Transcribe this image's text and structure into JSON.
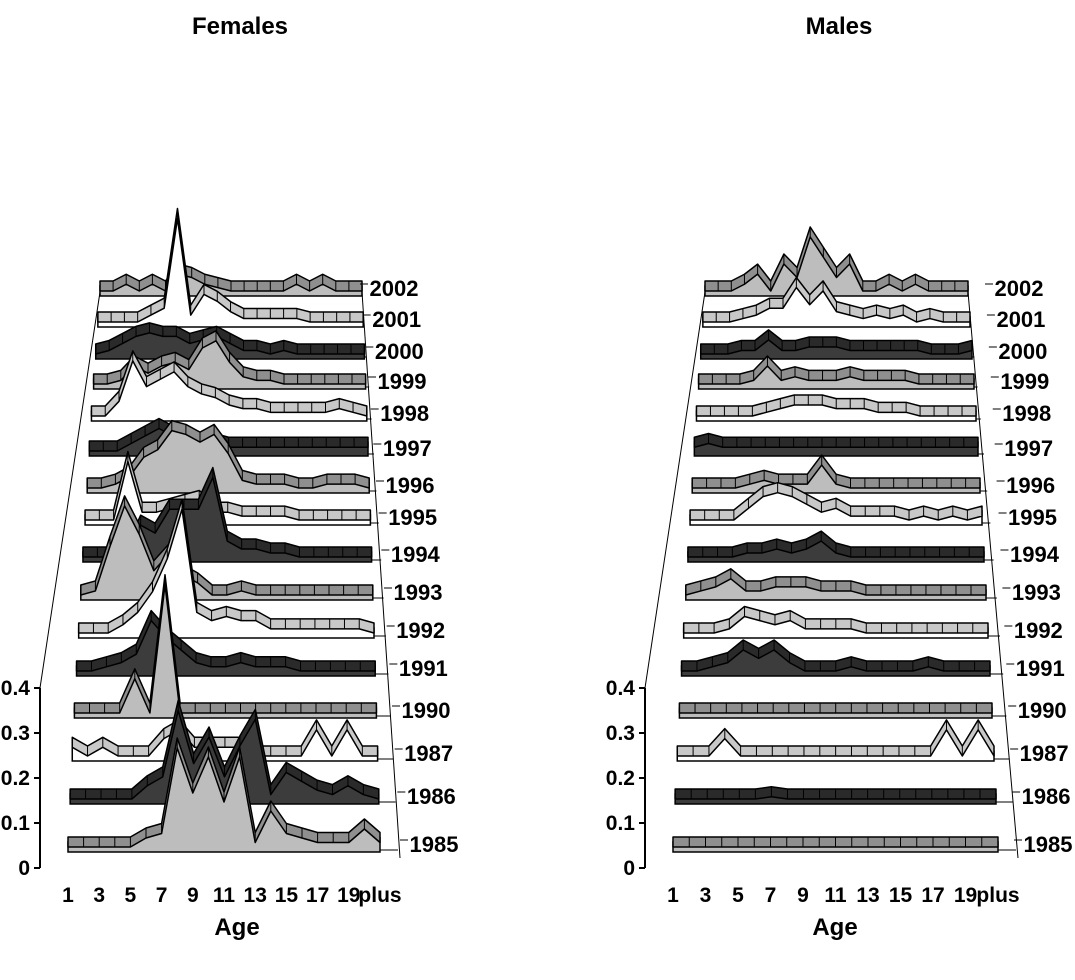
{
  "chart_data": [
    {
      "type": "area",
      "title": "Females",
      "xlabel": "Age",
      "ylabel": "",
      "ylim": [
        0,
        0.4
      ],
      "yticks": [
        "0",
        "0.1",
        "0.2",
        "0.3",
        "0.4"
      ],
      "categories": [
        "1",
        "2",
        "3",
        "4",
        "5",
        "6",
        "7",
        "8",
        "9",
        "10",
        "11",
        "12",
        "13",
        "14",
        "15",
        "16",
        "17",
        "18",
        "19",
        "20",
        "plus"
      ],
      "xtick_labels": [
        "1",
        "3",
        "5",
        "7",
        "9",
        "11",
        "13",
        "15",
        "17",
        "19",
        "plus"
      ],
      "series": [
        {
          "name": "1985",
          "fill": "#bdbdbd",
          "values": [
            0,
            0,
            0,
            0,
            0,
            0.02,
            0.03,
            0.22,
            0.12,
            0.2,
            0.1,
            0.2,
            0.01,
            0.08,
            0.03,
            0.02,
            0.01,
            0.01,
            0.01,
            0.04,
            0.01
          ]
        },
        {
          "name": "1986",
          "fill": "#3c3c3c",
          "values": [
            0,
            0,
            0,
            0,
            0,
            0.03,
            0.05,
            0.2,
            0.08,
            0.14,
            0.05,
            0.12,
            0.18,
            0.01,
            0.06,
            0.04,
            0.02,
            0.01,
            0.03,
            0.01,
            0
          ]
        },
        {
          "name": "1987",
          "fill": "#ffffff",
          "values": [
            0.02,
            0,
            0.02,
            0,
            0,
            0,
            0.04,
            0.06,
            0.02,
            0.02,
            0.02,
            0.02,
            0,
            0,
            0,
            0,
            0.06,
            0,
            0.06,
            0,
            0
          ]
        },
        {
          "name": "1990",
          "fill": "#bdbdbd",
          "values": [
            0,
            0,
            0,
            0,
            0.08,
            0,
            0.3,
            0,
            0,
            0,
            0,
            0,
            0,
            0,
            0,
            0,
            0,
            0,
            0,
            0,
            0
          ]
        },
        {
          "name": "1991",
          "fill": "#3c3c3c",
          "values": [
            0,
            0,
            0.01,
            0.02,
            0.04,
            0.12,
            0.08,
            0.05,
            0.02,
            0.01,
            0.01,
            0.02,
            0.01,
            0.01,
            0.01,
            0,
            0,
            0,
            0,
            0,
            0
          ]
        },
        {
          "name": "1992",
          "fill": "#ffffff",
          "values": [
            0,
            0,
            0,
            0.02,
            0.05,
            0.1,
            0.18,
            0.3,
            0.05,
            0.03,
            0.04,
            0.03,
            0.03,
            0.01,
            0.01,
            0.01,
            0.01,
            0.01,
            0.01,
            0.01,
            0
          ]
        },
        {
          "name": "1993",
          "fill": "#bdbdbd",
          "values": [
            0,
            0.01,
            0.12,
            0.22,
            0.15,
            0.06,
            0.1,
            0.05,
            0.03,
            0,
            0,
            0.01,
            0,
            0,
            0,
            0,
            0,
            0,
            0,
            0,
            0
          ]
        },
        {
          "name": "1994",
          "fill": "#3c3c3c",
          "values": [
            0,
            0,
            0,
            0,
            0.08,
            0.06,
            0.12,
            0.12,
            0.12,
            0.2,
            0.04,
            0.02,
            0.02,
            0.01,
            0.01,
            0,
            0,
            0,
            0,
            0,
            0
          ]
        },
        {
          "name": "1995",
          "fill": "#ffffff",
          "values": [
            0,
            0,
            0,
            0.15,
            0.02,
            0.02,
            0.03,
            0.04,
            0.05,
            0.02,
            0.02,
            0.01,
            0.01,
            0.01,
            0.01,
            0,
            0,
            0,
            0,
            0,
            0
          ]
        },
        {
          "name": "1996",
          "fill": "#bdbdbd",
          "values": [
            0,
            0,
            0.01,
            0.03,
            0.08,
            0.1,
            0.15,
            0.14,
            0.12,
            0.14,
            0.09,
            0.02,
            0.01,
            0.01,
            0.01,
            0,
            0,
            0.01,
            0.01,
            0.01,
            0
          ]
        },
        {
          "name": "1997",
          "fill": "#3c3c3c",
          "values": [
            0,
            0,
            0,
            0.02,
            0.04,
            0.06,
            0.04,
            0.03,
            0.02,
            0.02,
            0.01,
            0.01,
            0.01,
            0.01,
            0.01,
            0.01,
            0.01,
            0.01,
            0.01,
            0.01,
            0.01
          ]
        },
        {
          "name": "1998",
          "fill": "#ffffff",
          "values": [
            0,
            0,
            0.04,
            0.15,
            0.08,
            0.1,
            0.12,
            0.08,
            0.06,
            0.05,
            0.03,
            0.02,
            0.02,
            0.01,
            0.01,
            0.01,
            0.01,
            0.01,
            0.02,
            0.01,
            0
          ]
        },
        {
          "name": "1999",
          "fill": "#bdbdbd",
          "values": [
            0,
            0,
            0.01,
            0.05,
            0.03,
            0.05,
            0.06,
            0.04,
            0.1,
            0.12,
            0.06,
            0.02,
            0.01,
            0.01,
            0,
            0,
            0,
            0,
            0,
            0,
            0
          ]
        },
        {
          "name": "2000",
          "fill": "#3c3c3c",
          "values": [
            0,
            0.01,
            0.03,
            0.05,
            0.06,
            0.05,
            0.05,
            0.03,
            0.04,
            0.05,
            0.03,
            0.01,
            0.01,
            0,
            0.01,
            0,
            0,
            0,
            0,
            0,
            0
          ]
        },
        {
          "name": "2001",
          "fill": "#ffffff",
          "values": [
            0,
            0,
            0,
            0,
            0.02,
            0.04,
            0.3,
            0.02,
            0.08,
            0.06,
            0.03,
            0.01,
            0.01,
            0.01,
            0.01,
            0.01,
            0,
            0,
            0,
            0,
            0
          ]
        },
        {
          "name": "2002",
          "fill": "#bdbdbd",
          "values": [
            0,
            0,
            0.02,
            0,
            0.02,
            0,
            0.05,
            0.04,
            0.02,
            0.01,
            0,
            0,
            0,
            0,
            0,
            0.02,
            0,
            0.02,
            0,
            0,
            0
          ]
        }
      ]
    },
    {
      "type": "area",
      "title": "Males",
      "xlabel": "Age",
      "ylabel": "",
      "ylim": [
        0,
        0.4
      ],
      "yticks": [
        "0",
        "0.1",
        "0.2",
        "0.3",
        "0.4"
      ],
      "categories": [
        "1",
        "2",
        "3",
        "4",
        "5",
        "6",
        "7",
        "8",
        "9",
        "10",
        "11",
        "12",
        "13",
        "14",
        "15",
        "16",
        "17",
        "18",
        "19",
        "20",
        "plus"
      ],
      "xtick_labels": [
        "1",
        "3",
        "5",
        "7",
        "9",
        "11",
        "13",
        "15",
        "17",
        "19",
        "plus"
      ],
      "series": [
        {
          "name": "1985",
          "fill": "#bdbdbd",
          "values": [
            0,
            0,
            0,
            0,
            0,
            0,
            0,
            0,
            0,
            0,
            0,
            0,
            0,
            0,
            0,
            0,
            0,
            0,
            0,
            0,
            0
          ]
        },
        {
          "name": "1986",
          "fill": "#3c3c3c",
          "values": [
            0,
            0,
            0,
            0,
            0,
            0,
            0.005,
            0,
            0,
            0,
            0,
            0,
            0,
            0,
            0,
            0,
            0,
            0,
            0,
            0,
            0
          ]
        },
        {
          "name": "1987",
          "fill": "#ffffff",
          "values": [
            0,
            0,
            0,
            0.04,
            0,
            0,
            0,
            0,
            0,
            0,
            0,
            0,
            0,
            0,
            0,
            0,
            0,
            0.06,
            0,
            0.06,
            0
          ]
        },
        {
          "name": "1990",
          "fill": "#bdbdbd",
          "values": [
            0,
            0,
            0,
            0,
            0,
            0,
            0,
            0,
            0,
            0,
            0,
            0,
            0,
            0,
            0,
            0,
            0,
            0,
            0,
            0,
            0
          ]
        },
        {
          "name": "1991",
          "fill": "#3c3c3c",
          "values": [
            0,
            0,
            0.01,
            0.02,
            0.05,
            0.03,
            0.05,
            0.02,
            0,
            0,
            0,
            0.01,
            0,
            0,
            0,
            0,
            0.01,
            0,
            0,
            0,
            0
          ]
        },
        {
          "name": "1992",
          "fill": "#ffffff",
          "values": [
            0,
            0,
            0,
            0.01,
            0.04,
            0.03,
            0.02,
            0.03,
            0.01,
            0.01,
            0.01,
            0.01,
            0,
            0,
            0,
            0,
            0,
            0,
            0,
            0,
            0
          ]
        },
        {
          "name": "1993",
          "fill": "#bdbdbd",
          "values": [
            0,
            0.01,
            0.02,
            0.04,
            0.01,
            0.01,
            0.02,
            0.02,
            0.02,
            0.01,
            0.01,
            0.01,
            0,
            0,
            0,
            0,
            0,
            0,
            0,
            0,
            0
          ]
        },
        {
          "name": "1994",
          "fill": "#3c3c3c",
          "values": [
            0,
            0,
            0,
            0,
            0.01,
            0.01,
            0.02,
            0.01,
            0.02,
            0.04,
            0.01,
            0,
            0,
            0,
            0,
            0,
            0,
            0,
            0,
            0,
            0
          ]
        },
        {
          "name": "1995",
          "fill": "#ffffff",
          "values": [
            0,
            0,
            0,
            0,
            0.03,
            0.06,
            0.07,
            0.06,
            0.04,
            0.02,
            0.03,
            0.01,
            0.01,
            0.01,
            0.01,
            0,
            0.01,
            0,
            0.01,
            0,
            0.01
          ]
        },
        {
          "name": "1996",
          "fill": "#bdbdbd",
          "values": [
            0,
            0,
            0,
            0,
            0.01,
            0.02,
            0.01,
            0.01,
            0.01,
            0.06,
            0.01,
            0,
            0,
            0,
            0,
            0,
            0,
            0,
            0,
            0,
            0
          ]
        },
        {
          "name": "1997",
          "fill": "#3c3c3c",
          "values": [
            0.01,
            0.02,
            0.01,
            0.01,
            0.01,
            0.01,
            0.01,
            0.01,
            0.01,
            0.01,
            0.01,
            0.01,
            0.01,
            0.01,
            0.01,
            0.01,
            0.01,
            0.01,
            0.01,
            0.01,
            0.01
          ]
        },
        {
          "name": "1998",
          "fill": "#ffffff",
          "values": [
            0,
            0,
            0,
            0,
            0,
            0.01,
            0.02,
            0.03,
            0.03,
            0.03,
            0.02,
            0.02,
            0.02,
            0.01,
            0.01,
            0.01,
            0,
            0,
            0,
            0,
            0
          ]
        },
        {
          "name": "1999",
          "fill": "#bdbdbd",
          "values": [
            0,
            0,
            0,
            0,
            0.01,
            0.05,
            0.01,
            0.02,
            0.01,
            0.01,
            0.01,
            0.02,
            0.01,
            0.01,
            0.01,
            0.01,
            0,
            0,
            0,
            0,
            0
          ]
        },
        {
          "name": "2000",
          "fill": "#3c3c3c",
          "values": [
            0,
            0,
            0,
            0.01,
            0.01,
            0.04,
            0.01,
            0.01,
            0.02,
            0.02,
            0.02,
            0.01,
            0.01,
            0.01,
            0.01,
            0.01,
            0.01,
            0,
            0,
            0,
            0.01
          ]
        },
        {
          "name": "2001",
          "fill": "#ffffff",
          "values": [
            0,
            0,
            0,
            0.01,
            0.02,
            0.04,
            0.04,
            0.1,
            0.05,
            0.09,
            0.03,
            0.02,
            0.01,
            0.02,
            0.01,
            0.02,
            0,
            0.01,
            0,
            0,
            0
          ]
        },
        {
          "name": "2002",
          "fill": "#bdbdbd",
          "values": [
            0,
            0,
            0,
            0.02,
            0.05,
            0,
            0.08,
            0.04,
            0.16,
            0.1,
            0.04,
            0.08,
            0,
            0,
            0.02,
            0,
            0.02,
            0,
            0,
            0,
            0
          ]
        }
      ]
    }
  ]
}
